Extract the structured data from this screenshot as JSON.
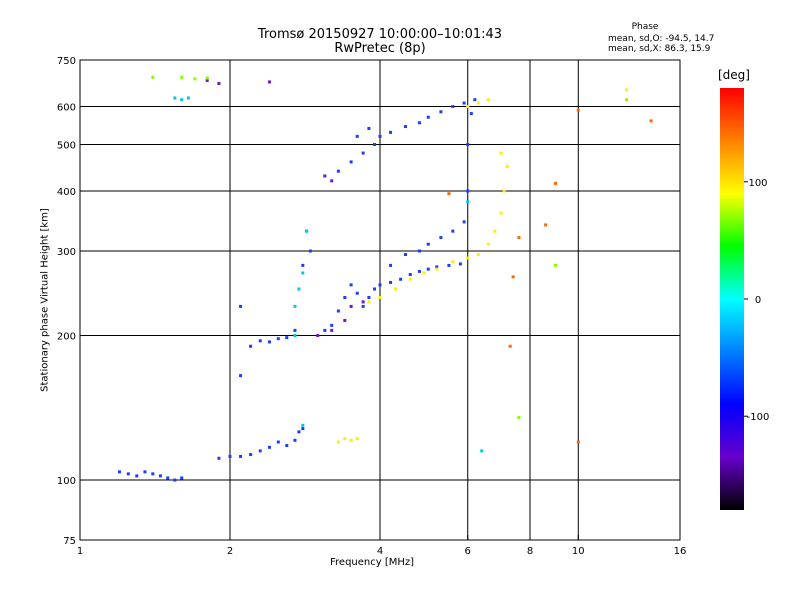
{
  "chart_data": {
    "type": "scatter",
    "title": "Tromsø 20150927 10:00:00–10:01:43",
    "subtitle": "RwPretec (8p)",
    "xlabel": "Frequency [MHz]",
    "ylabel": "Stationary phase Virtual Height [km]",
    "x_scale": "log",
    "y_scale": "log",
    "xlim": [
      1,
      16
    ],
    "ylim": [
      75,
      750
    ],
    "x_ticks": [
      1,
      2,
      4,
      6,
      8,
      10,
      16
    ],
    "y_ticks": [
      75,
      100,
      200,
      300,
      400,
      500,
      600,
      750
    ],
    "x_gridlines": [
      2,
      4,
      6,
      8,
      10
    ],
    "y_gridlines": [
      100,
      200,
      300,
      400,
      500,
      600
    ],
    "grid": true,
    "phase_stats": {
      "title": "Phase",
      "o_line": "mean, sd,O: -94.5, 14.7",
      "x_line": "mean, sd,X:  86.3, 15.9"
    },
    "colorbar": {
      "unit": "[deg]",
      "min": -180,
      "max": 180,
      "ticks": [
        100,
        0,
        -100
      ],
      "colors": [
        "#ff0000",
        "#ff8000",
        "#ffff00",
        "#00ff00",
        "#00ffff",
        "#0080ff",
        "#0000ff",
        "#6600cc",
        "#000000"
      ]
    },
    "series": [
      {
        "color": "#1a3cff",
        "points": [
          [
            1.2,
            104
          ],
          [
            1.25,
            103
          ],
          [
            1.3,
            102
          ],
          [
            1.35,
            104
          ],
          [
            1.4,
            103
          ],
          [
            1.45,
            102
          ],
          [
            1.5,
            101
          ],
          [
            1.55,
            100
          ],
          [
            1.6,
            101
          ],
          [
            1.9,
            111
          ],
          [
            2.0,
            112
          ],
          [
            2.1,
            112
          ],
          [
            2.2,
            113
          ],
          [
            2.3,
            115
          ],
          [
            2.4,
            117
          ],
          [
            2.5,
            120
          ],
          [
            2.6,
            118
          ],
          [
            2.7,
            121
          ],
          [
            2.75,
            126
          ],
          [
            2.8,
            128
          ],
          [
            2.1,
            165
          ],
          [
            2.2,
            190
          ],
          [
            2.3,
            195
          ],
          [
            2.4,
            194
          ],
          [
            2.5,
            197
          ],
          [
            2.6,
            198
          ],
          [
            2.7,
            205
          ],
          [
            2.1,
            230
          ],
          [
            2.8,
            280
          ],
          [
            2.85,
            330
          ],
          [
            2.9,
            300
          ],
          [
            3.1,
            205
          ],
          [
            3.2,
            210
          ],
          [
            3.3,
            225
          ],
          [
            3.4,
            240
          ],
          [
            3.5,
            255
          ],
          [
            3.6,
            245
          ],
          [
            3.7,
            230
          ],
          [
            3.8,
            240
          ],
          [
            3.9,
            250
          ],
          [
            4.0,
            255
          ],
          [
            4.2,
            258
          ],
          [
            4.4,
            262
          ],
          [
            4.6,
            268
          ],
          [
            4.8,
            272
          ],
          [
            5.0,
            275
          ],
          [
            5.2,
            278
          ],
          [
            5.5,
            280
          ],
          [
            5.8,
            282
          ],
          [
            4.2,
            280
          ],
          [
            4.5,
            295
          ],
          [
            4.8,
            300
          ],
          [
            5.0,
            310
          ],
          [
            5.3,
            320
          ],
          [
            5.6,
            330
          ],
          [
            5.9,
            345
          ],
          [
            6.0,
            400
          ],
          [
            6.0,
            500
          ],
          [
            6.1,
            580
          ],
          [
            3.3,
            440
          ],
          [
            3.5,
            460
          ],
          [
            3.7,
            480
          ],
          [
            3.9,
            500
          ],
          [
            4.0,
            520
          ],
          [
            4.2,
            530
          ],
          [
            4.5,
            545
          ],
          [
            4.8,
            555
          ],
          [
            5.0,
            570
          ],
          [
            5.3,
            585
          ],
          [
            5.6,
            600
          ],
          [
            5.9,
            610
          ],
          [
            6.2,
            620
          ],
          [
            3.6,
            520
          ],
          [
            3.8,
            540
          ]
        ]
      },
      {
        "color": "#6a18c8",
        "points": [
          [
            3.1,
            430
          ],
          [
            3.2,
            420
          ],
          [
            3.0,
            200
          ],
          [
            3.2,
            205
          ],
          [
            3.4,
            215
          ],
          [
            3.5,
            230
          ],
          [
            3.7,
            235
          ],
          [
            1.8,
            680
          ],
          [
            1.9,
            670
          ],
          [
            2.4,
            675
          ]
        ]
      },
      {
        "color": "#ffee00",
        "points": [
          [
            3.3,
            120
          ],
          [
            3.4,
            122
          ],
          [
            3.5,
            121
          ],
          [
            3.6,
            122
          ],
          [
            3.8,
            235
          ],
          [
            4.0,
            240
          ],
          [
            4.3,
            250
          ],
          [
            4.6,
            262
          ],
          [
            4.9,
            270
          ],
          [
            5.2,
            275
          ],
          [
            5.6,
            285
          ],
          [
            6.0,
            290
          ],
          [
            6.3,
            295
          ],
          [
            6.6,
            310
          ],
          [
            6.8,
            330
          ],
          [
            7.0,
            360
          ],
          [
            7.1,
            400
          ],
          [
            7.2,
            450
          ],
          [
            7.0,
            480
          ],
          [
            6.0,
            600
          ],
          [
            6.3,
            610
          ],
          [
            6.6,
            620
          ],
          [
            12.5,
            650
          ]
        ]
      },
      {
        "color": "#00c8e8",
        "points": [
          [
            1.55,
            625
          ],
          [
            1.6,
            620
          ],
          [
            1.65,
            625
          ],
          [
            2.7,
            230
          ],
          [
            2.75,
            250
          ],
          [
            2.8,
            270
          ],
          [
            2.85,
            330
          ],
          [
            2.8,
            130
          ],
          [
            2.7,
            200
          ],
          [
            6.0,
            380
          ],
          [
            6.4,
            115
          ]
        ]
      },
      {
        "color": "#ff6600",
        "points": [
          [
            7.3,
            190
          ],
          [
            7.4,
            265
          ],
          [
            7.6,
            320
          ],
          [
            9.0,
            415
          ],
          [
            8.6,
            340
          ],
          [
            5.5,
            395
          ],
          [
            10.0,
            590
          ],
          [
            10.0,
            120
          ],
          [
            14.0,
            560
          ]
        ]
      },
      {
        "color": "#88ff00",
        "points": [
          [
            1.4,
            690
          ],
          [
            1.6,
            690
          ],
          [
            1.7,
            685
          ],
          [
            1.8,
            688
          ],
          [
            9.0,
            280
          ],
          [
            7.6,
            135
          ],
          [
            12.5,
            620
          ]
        ]
      }
    ]
  }
}
